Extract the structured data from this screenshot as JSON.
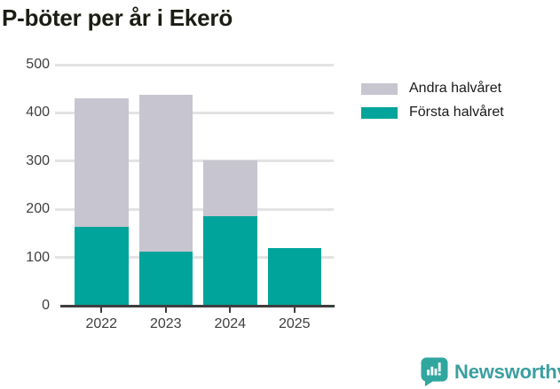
{
  "title": "P-böter per år i Ekerö",
  "chart_data": {
    "type": "bar",
    "stacked": true,
    "title": "P-böter per år i Ekerö",
    "categories": [
      "2022",
      "2023",
      "2024",
      "2025"
    ],
    "series": [
      {
        "name": "Första halvåret",
        "color": "#00A49A",
        "values": [
          163,
          112,
          185,
          119
        ]
      },
      {
        "name": "Andra halvåret",
        "color": "#C7C5CF",
        "values": [
          267,
          325,
          117,
          0
        ]
      }
    ],
    "xlabel": "",
    "ylabel": "",
    "ylim": [
      0,
      500
    ],
    "yticks": [
      0,
      100,
      200,
      300,
      400,
      500
    ],
    "grid": true,
    "gridline_color": "#E3E3E3",
    "axis_color": "#3E3E3E",
    "legend_position": "right-top"
  },
  "legend": {
    "items": [
      {
        "label": "Andra halvåret",
        "color": "#C7C5CF",
        "icon": "legend-swatch-gray"
      },
      {
        "label": "Första halvåret",
        "color": "#00A49A",
        "icon": "legend-swatch-teal"
      }
    ]
  },
  "footer": {
    "brand": "Newsworthy",
    "brand_color": "#3A9FA0",
    "logo_icon": "newsworthy-bar-chart-speech-bubble"
  }
}
